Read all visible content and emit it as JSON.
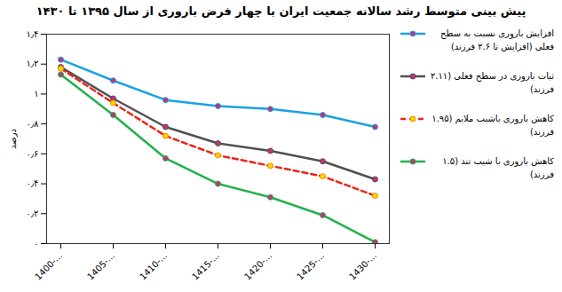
{
  "chart_data": {
    "type": "line",
    "title": "پیش بینی متوسط رشد سالانه جمعیت ایران با چهار فرض باروری از سال ۱۳۹۵ تا ۱۴۳۰",
    "y_label": "درصد",
    "categories": [
      "1400-...",
      "1405-...",
      "1410-...",
      "1415-...",
      "1420-...",
      "1425-...",
      "1430-..."
    ],
    "ylim": [
      0,
      1.4
    ],
    "yticks": [
      {
        "value": 0,
        "label": "۰"
      },
      {
        "value": 0.2,
        "label": "۰٫۲"
      },
      {
        "value": 0.4,
        "label": "۰٫۴"
      },
      {
        "value": 0.6,
        "label": "۰٫۶"
      },
      {
        "value": 0.8,
        "label": "۰٫۸"
      },
      {
        "value": 1.0,
        "label": "۱"
      },
      {
        "value": 1.2,
        "label": "۱٫۲"
      },
      {
        "value": 1.4,
        "label": "۱٫۴"
      }
    ],
    "grid": false,
    "legend": "right",
    "marker": "circle",
    "series": [
      {
        "name": "افزایش باروری نسبت به سطح فعلی (افزایش تا ۲.۶ فرزند)",
        "color": "#1ba1e2",
        "line_style": "solid",
        "values": [
          1.23,
          1.09,
          0.96,
          0.92,
          0.9,
          0.86,
          0.78
        ]
      },
      {
        "name": "ثبات باروری در سطح فعلی (۲.۱۱ فرزند)",
        "color": "#505050",
        "line_style": "solid",
        "values": [
          1.18,
          0.97,
          0.78,
          0.67,
          0.62,
          0.55,
          0.43
        ]
      },
      {
        "name": "کاهش باروری باشیب ملایم (۱.۹۵ فرزند)",
        "color": "#e8261c",
        "line_style": "dashed",
        "values": [
          1.17,
          0.94,
          0.72,
          0.59,
          0.52,
          0.45,
          0.32
        ]
      },
      {
        "name": "کاهش باروری با شیب تند (۱.۵ فرزند)",
        "color": "#22b14c",
        "line_style": "solid",
        "values": [
          1.13,
          0.86,
          0.57,
          0.4,
          0.31,
          0.19,
          0.01
        ]
      }
    ]
  }
}
